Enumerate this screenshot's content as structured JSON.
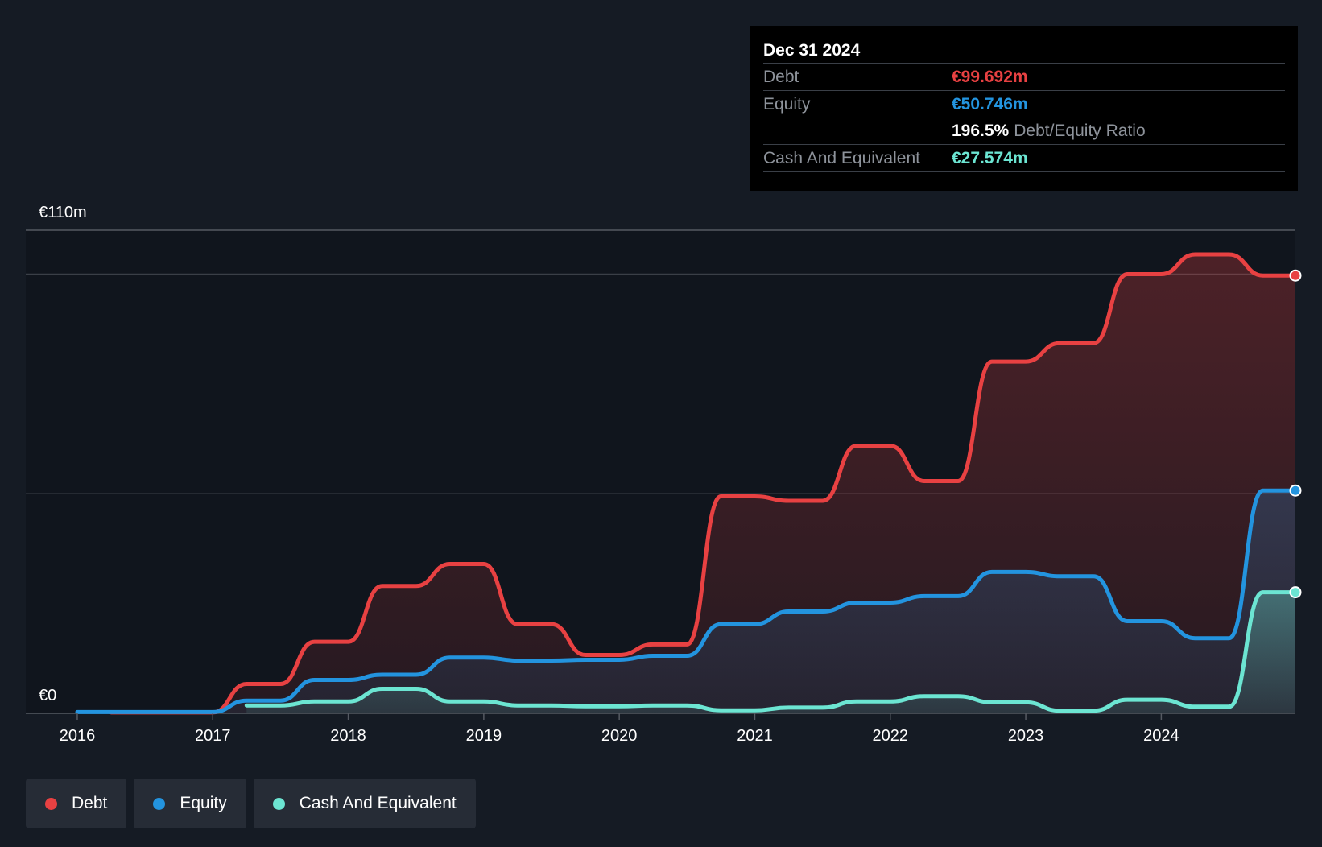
{
  "tooltip": {
    "date": "Dec 31 2024",
    "debt_label": "Debt",
    "debt_value": "€99.692m",
    "equity_label": "Equity",
    "equity_value": "€50.746m",
    "ratio_value": "196.5%",
    "ratio_label": "Debt/Equity Ratio",
    "cash_label": "Cash And Equivalent",
    "cash_value": "€27.574m"
  },
  "legend": {
    "debt": "Debt",
    "equity": "Equity",
    "cash": "Cash And Equivalent"
  },
  "colors": {
    "debt": "#e84142",
    "equity": "#2394df",
    "cash": "#6ce5d2",
    "grid": "#3a3f47",
    "background": "#151b24"
  },
  "chart_data": {
    "type": "area",
    "title": "",
    "xlabel": "",
    "ylabel": "",
    "ylim": [
      0,
      110
    ],
    "y_top_label": "€110m",
    "y_bottom_label": "€0",
    "x_ticks": [
      {
        "value": 2016,
        "label": "2016"
      },
      {
        "value": 2017,
        "label": "2017"
      },
      {
        "value": 2018,
        "label": "2018"
      },
      {
        "value": 2019,
        "label": "2019"
      },
      {
        "value": 2020,
        "label": "2020"
      },
      {
        "value": 2021,
        "label": "2021"
      },
      {
        "value": 2022,
        "label": "2022"
      },
      {
        "value": 2023,
        "label": "2023"
      },
      {
        "value": 2024,
        "label": "2024"
      }
    ],
    "gridlines": [
      50,
      100
    ],
    "xlim": [
      2015.62,
      2024.99
    ],
    "series": [
      {
        "name": "Debt",
        "key": "debt",
        "points": [
          [
            2016.25,
            0.2
          ],
          [
            2017.0,
            0.2
          ],
          [
            2017.25,
            6.7
          ],
          [
            2017.5,
            6.7
          ],
          [
            2017.75,
            16.3
          ],
          [
            2018.0,
            16.3
          ],
          [
            2018.25,
            29.0
          ],
          [
            2018.5,
            29.0
          ],
          [
            2018.75,
            34.0
          ],
          [
            2019.0,
            34.0
          ],
          [
            2019.25,
            20.3
          ],
          [
            2019.5,
            20.3
          ],
          [
            2019.75,
            13.3
          ],
          [
            2020.0,
            13.3
          ],
          [
            2020.25,
            15.7
          ],
          [
            2020.5,
            15.7
          ],
          [
            2020.75,
            49.4
          ],
          [
            2021.0,
            49.4
          ],
          [
            2021.25,
            48.4
          ],
          [
            2021.5,
            48.4
          ],
          [
            2021.75,
            60.9
          ],
          [
            2022.0,
            60.9
          ],
          [
            2022.25,
            52.9
          ],
          [
            2022.5,
            52.9
          ],
          [
            2022.75,
            80.1
          ],
          [
            2023.0,
            80.1
          ],
          [
            2023.25,
            84.3
          ],
          [
            2023.5,
            84.3
          ],
          [
            2023.75,
            100.0
          ],
          [
            2024.0,
            100.0
          ],
          [
            2024.25,
            104.5
          ],
          [
            2024.5,
            104.5
          ],
          [
            2024.75,
            99.692
          ],
          [
            2024.99,
            99.692
          ]
        ]
      },
      {
        "name": "Equity",
        "key": "equity",
        "points": [
          [
            2016.0,
            0.3
          ],
          [
            2017.0,
            0.3
          ],
          [
            2017.25,
            2.9
          ],
          [
            2017.5,
            2.9
          ],
          [
            2017.75,
            7.6
          ],
          [
            2018.0,
            7.6
          ],
          [
            2018.25,
            8.8
          ],
          [
            2018.5,
            8.8
          ],
          [
            2018.75,
            12.7
          ],
          [
            2019.0,
            12.7
          ],
          [
            2019.25,
            12.0
          ],
          [
            2019.5,
            12.0
          ],
          [
            2019.75,
            12.2
          ],
          [
            2020.0,
            12.2
          ],
          [
            2020.25,
            13.1
          ],
          [
            2020.5,
            13.1
          ],
          [
            2020.75,
            20.3
          ],
          [
            2021.0,
            20.3
          ],
          [
            2021.25,
            23.2
          ],
          [
            2021.5,
            23.2
          ],
          [
            2021.75,
            25.2
          ],
          [
            2022.0,
            25.2
          ],
          [
            2022.25,
            26.7
          ],
          [
            2022.5,
            26.7
          ],
          [
            2022.75,
            32.2
          ],
          [
            2023.0,
            32.2
          ],
          [
            2023.25,
            31.2
          ],
          [
            2023.5,
            31.2
          ],
          [
            2023.75,
            21.0
          ],
          [
            2024.0,
            21.0
          ],
          [
            2024.25,
            17.1
          ],
          [
            2024.5,
            17.1
          ],
          [
            2024.75,
            50.746
          ],
          [
            2024.99,
            50.746
          ]
        ]
      },
      {
        "name": "Cash And Equivalent",
        "key": "cash",
        "points": [
          [
            2017.25,
            1.8
          ],
          [
            2017.5,
            1.8
          ],
          [
            2017.75,
            2.7
          ],
          [
            2018.0,
            2.7
          ],
          [
            2018.25,
            5.6
          ],
          [
            2018.5,
            5.6
          ],
          [
            2018.75,
            2.7
          ],
          [
            2019.0,
            2.7
          ],
          [
            2019.25,
            1.8
          ],
          [
            2019.5,
            1.8
          ],
          [
            2019.75,
            1.6
          ],
          [
            2020.0,
            1.6
          ],
          [
            2020.25,
            1.8
          ],
          [
            2020.5,
            1.8
          ],
          [
            2020.75,
            0.7
          ],
          [
            2021.0,
            0.7
          ],
          [
            2021.25,
            1.3
          ],
          [
            2021.5,
            1.3
          ],
          [
            2021.75,
            2.7
          ],
          [
            2022.0,
            2.7
          ],
          [
            2022.25,
            3.9
          ],
          [
            2022.5,
            3.9
          ],
          [
            2022.75,
            2.5
          ],
          [
            2023.0,
            2.5
          ],
          [
            2023.25,
            0.6
          ],
          [
            2023.5,
            0.6
          ],
          [
            2023.75,
            3.1
          ],
          [
            2024.0,
            3.1
          ],
          [
            2024.25,
            1.5
          ],
          [
            2024.5,
            1.5
          ],
          [
            2024.75,
            27.574
          ],
          [
            2024.99,
            27.574
          ]
        ]
      }
    ]
  }
}
